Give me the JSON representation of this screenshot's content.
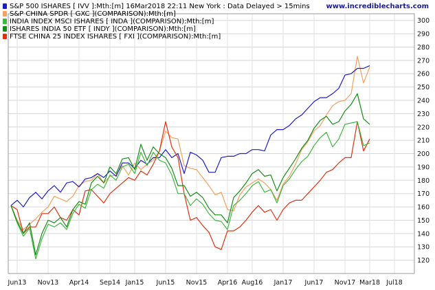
{
  "header": {
    "watermark": "www.incrediblecharts.com"
  },
  "chart_data": {
    "type": "line",
    "title": "",
    "xlabel": "",
    "ylabel": "",
    "ylim": [
      110,
      305
    ],
    "grid": true,
    "legend_position": "top-left",
    "x_tick_labels": [
      "Jun13",
      "Nov13",
      "Apr14",
      "Sep14",
      "Jan15",
      "Jun15",
      "Nov15",
      "Apr16",
      "Aug16",
      "Jan17",
      "Jun17",
      "Nov17",
      "Mar18",
      "Jul18"
    ],
    "y_ticks": [
      120,
      130,
      140,
      150,
      160,
      170,
      180,
      190,
      200,
      210,
      220,
      230,
      240,
      250,
      260,
      270,
      280,
      290,
      300
    ],
    "x": [
      "2013-05",
      "2013-06",
      "2013-07",
      "2013-08",
      "2013-09",
      "2013-10",
      "2013-11",
      "2013-12",
      "2014-01",
      "2014-02",
      "2014-03",
      "2014-04",
      "2014-05",
      "2014-06",
      "2014-07",
      "2014-08",
      "2014-09",
      "2014-10",
      "2014-11",
      "2014-12",
      "2015-01",
      "2015-02",
      "2015-03",
      "2015-04",
      "2015-05",
      "2015-06",
      "2015-07",
      "2015-08",
      "2015-09",
      "2015-10",
      "2015-11",
      "2015-12",
      "2016-01",
      "2016-02",
      "2016-03",
      "2016-04",
      "2016-05",
      "2016-06",
      "2016-07",
      "2016-08",
      "2016-09",
      "2016-10",
      "2016-11",
      "2016-12",
      "2017-01",
      "2017-02",
      "2017-03",
      "2017-04",
      "2017-05",
      "2017-06",
      "2017-07",
      "2017-08",
      "2017-09",
      "2017-10",
      "2017-11",
      "2017-12",
      "2018-01",
      "2018-02",
      "2018-03"
    ],
    "series": [
      {
        "name": "S&P 500 ISHARES [ IVV ]:Mth:[m]  16Mar2018 22:11 New York : Data Delayed > 15mins",
        "color": "#1c1cc8",
        "values": [
          161,
          165,
          160,
          167,
          171,
          166,
          172,
          176,
          171,
          178,
          179,
          175,
          181,
          182,
          185,
          182,
          187,
          183,
          193,
          193,
          189,
          195,
          192,
          197,
          197,
          203,
          197,
          200,
          185,
          201,
          199,
          195,
          186,
          186,
          197,
          198,
          198,
          200,
          200,
          203,
          203,
          202,
          214,
          218,
          218,
          221,
          226,
          229,
          234,
          239,
          242,
          242,
          245,
          249,
          259,
          260,
          264,
          264,
          266
        ]
      },
      {
        "name": "S&P CHINA SPDR [ GXC ](COMPARISON):Mth:[m]",
        "color": "#f5a060",
        "values": [
          161,
          150,
          143,
          147,
          151,
          156,
          160,
          168,
          166,
          164,
          168,
          176,
          179,
          180,
          185,
          178,
          183,
          184,
          191,
          184,
          193,
          188,
          192,
          195,
          202,
          217,
          212,
          211,
          191,
          189,
          188,
          182,
          176,
          169,
          171,
          158,
          157,
          169,
          175,
          178,
          181,
          178,
          173,
          165,
          177,
          183,
          192,
          203,
          209,
          217,
          221,
          229,
          236,
          239,
          240,
          245,
          273,
          253,
          265
        ]
      },
      {
        "name": "INDIA INDEX MSCI ISHARES [ INDA ](COMPARISON):Mth:[m]",
        "color": "#3db83d",
        "values": [
          161,
          148,
          138,
          144,
          121,
          136,
          147,
          145,
          148,
          143,
          155,
          162,
          159,
          173,
          177,
          174,
          184,
          180,
          190,
          192,
          185,
          201,
          191,
          201,
          195,
          193,
          184,
          170,
          170,
          161,
          166,
          162,
          155,
          150,
          149,
          143,
          161,
          165,
          170,
          176,
          179,
          171,
          173,
          163,
          176,
          181,
          188,
          194,
          198,
          206,
          212,
          216,
          205,
          211,
          222,
          223,
          224,
          206,
          208
        ]
      },
      {
        "name": "ISHARES INDIA 50 ETF [ INDY ](COMPARISON):Mth:[m]",
        "color": "#148c14",
        "values": [
          161,
          149,
          140,
          148,
          124,
          140,
          150,
          148,
          152,
          145,
          158,
          164,
          162,
          178,
          183,
          178,
          190,
          185,
          196,
          197,
          188,
          207,
          195,
          205,
          200,
          197,
          189,
          176,
          176,
          168,
          171,
          167,
          159,
          154,
          154,
          148,
          167,
          172,
          178,
          185,
          188,
          183,
          184,
          172,
          182,
          189,
          196,
          204,
          210,
          219,
          225,
          228,
          222,
          224,
          232,
          237,
          245,
          226,
          222
        ]
      },
      {
        "name": "FTSE CHINA 25 INDEX ISHARES [ FXI ](COMPARISON):Mth:[m]",
        "color": "#e03010",
        "values": [
          161,
          158,
          140,
          145,
          145,
          155,
          155,
          160,
          152,
          150,
          158,
          154,
          172,
          173,
          168,
          163,
          170,
          174,
          178,
          182,
          180,
          187,
          184,
          192,
          202,
          224,
          205,
          197,
          170,
          150,
          152,
          146,
          141,
          130,
          128,
          142,
          142,
          145,
          150,
          156,
          161,
          156,
          158,
          150,
          158,
          163,
          165,
          165,
          170,
          175,
          180,
          186,
          188,
          193,
          197,
          197,
          224,
          202,
          211
        ]
      }
    ]
  }
}
